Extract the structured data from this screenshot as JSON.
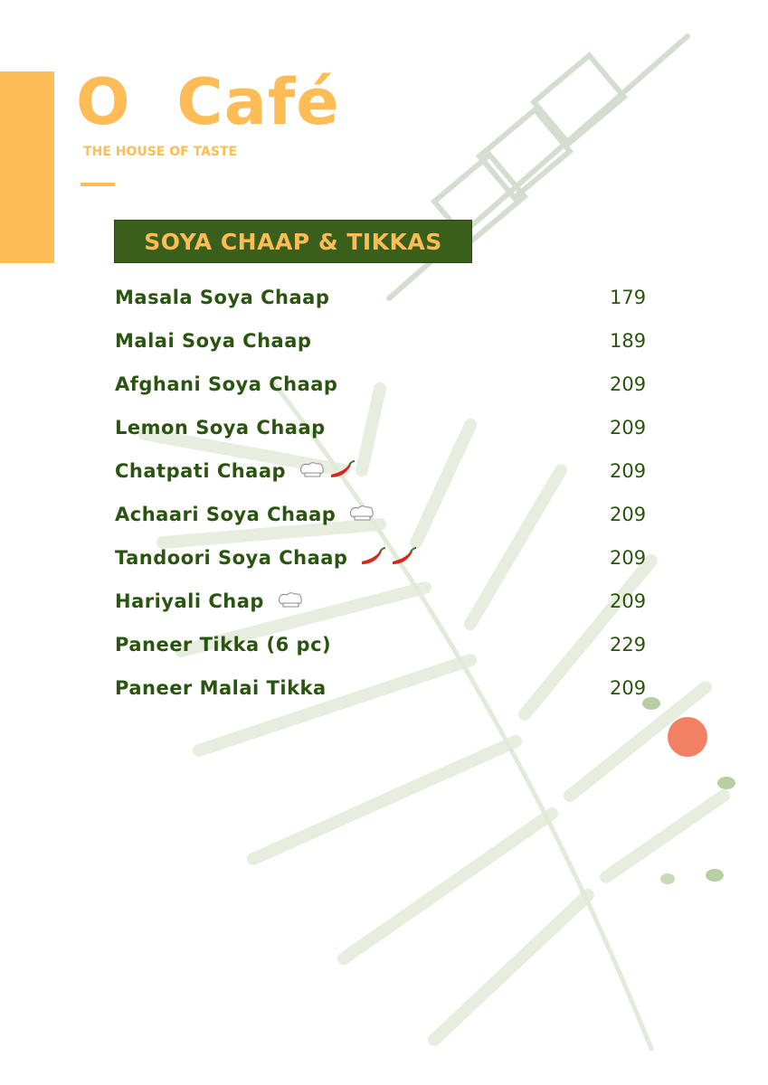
{
  "brand": {
    "name": "O  Café",
    "tagline": "THE HOUSE OF TASTE"
  },
  "section": {
    "title": "SOYA CHAAP & TIKKAS"
  },
  "colors": {
    "accent": "#FDBC55",
    "green": "#2b5410",
    "header_bg": "#3a5f1a"
  },
  "items": [
    {
      "name": "Masala Soya Chaap",
      "price": "179",
      "icons": []
    },
    {
      "name": "Malai Soya Chaap",
      "price": "189",
      "icons": []
    },
    {
      "name": "Afghani Soya Chaap",
      "price": "209",
      "icons": []
    },
    {
      "name": "Lemon Soya Chaap",
      "price": "209",
      "icons": []
    },
    {
      "name": "Chatpati Chaap",
      "price": "209",
      "icons": [
        "chef-hat-icon",
        "chili-icon"
      ]
    },
    {
      "name": "Achaari Soya Chaap",
      "price": "209",
      "icons": [
        "chef-hat-icon"
      ]
    },
    {
      "name": "Tandoori Soya Chaap",
      "price": "209",
      "icons": [
        "chili-icon",
        "chili-icon"
      ]
    },
    {
      "name": "Hariyali Chap",
      "price": "209",
      "icons": [
        "chef-hat-icon"
      ]
    },
    {
      "name": "Paneer Tikka (6 pc)",
      "price": "229",
      "icons": []
    },
    {
      "name": "Paneer Malai Tikka",
      "price": "209",
      "icons": []
    }
  ]
}
